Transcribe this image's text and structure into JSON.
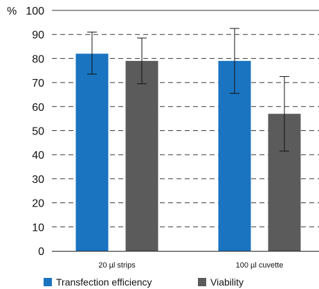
{
  "chart_data": {
    "type": "bar",
    "ylabel": "%",
    "ylim": [
      0,
      100
    ],
    "yticks": [
      0,
      10,
      20,
      30,
      40,
      50,
      60,
      70,
      80,
      90,
      100
    ],
    "grid": "dashed-horizontal",
    "legend_position": "bottom",
    "categories": [
      "20 µl strips",
      "100 µl cuvette"
    ],
    "series": [
      {
        "name": "Transfection efficiency",
        "color": "#1a74c0",
        "values": [
          82,
          79
        ],
        "error_low": [
          73.5,
          65.5
        ],
        "error_high": [
          91,
          92.5
        ]
      },
      {
        "name": "Viability",
        "color": "#5b5b5b",
        "values": [
          79,
          57
        ],
        "error_low": [
          69.5,
          41.5
        ],
        "error_high": [
          88.5,
          72.5
        ]
      }
    ]
  }
}
